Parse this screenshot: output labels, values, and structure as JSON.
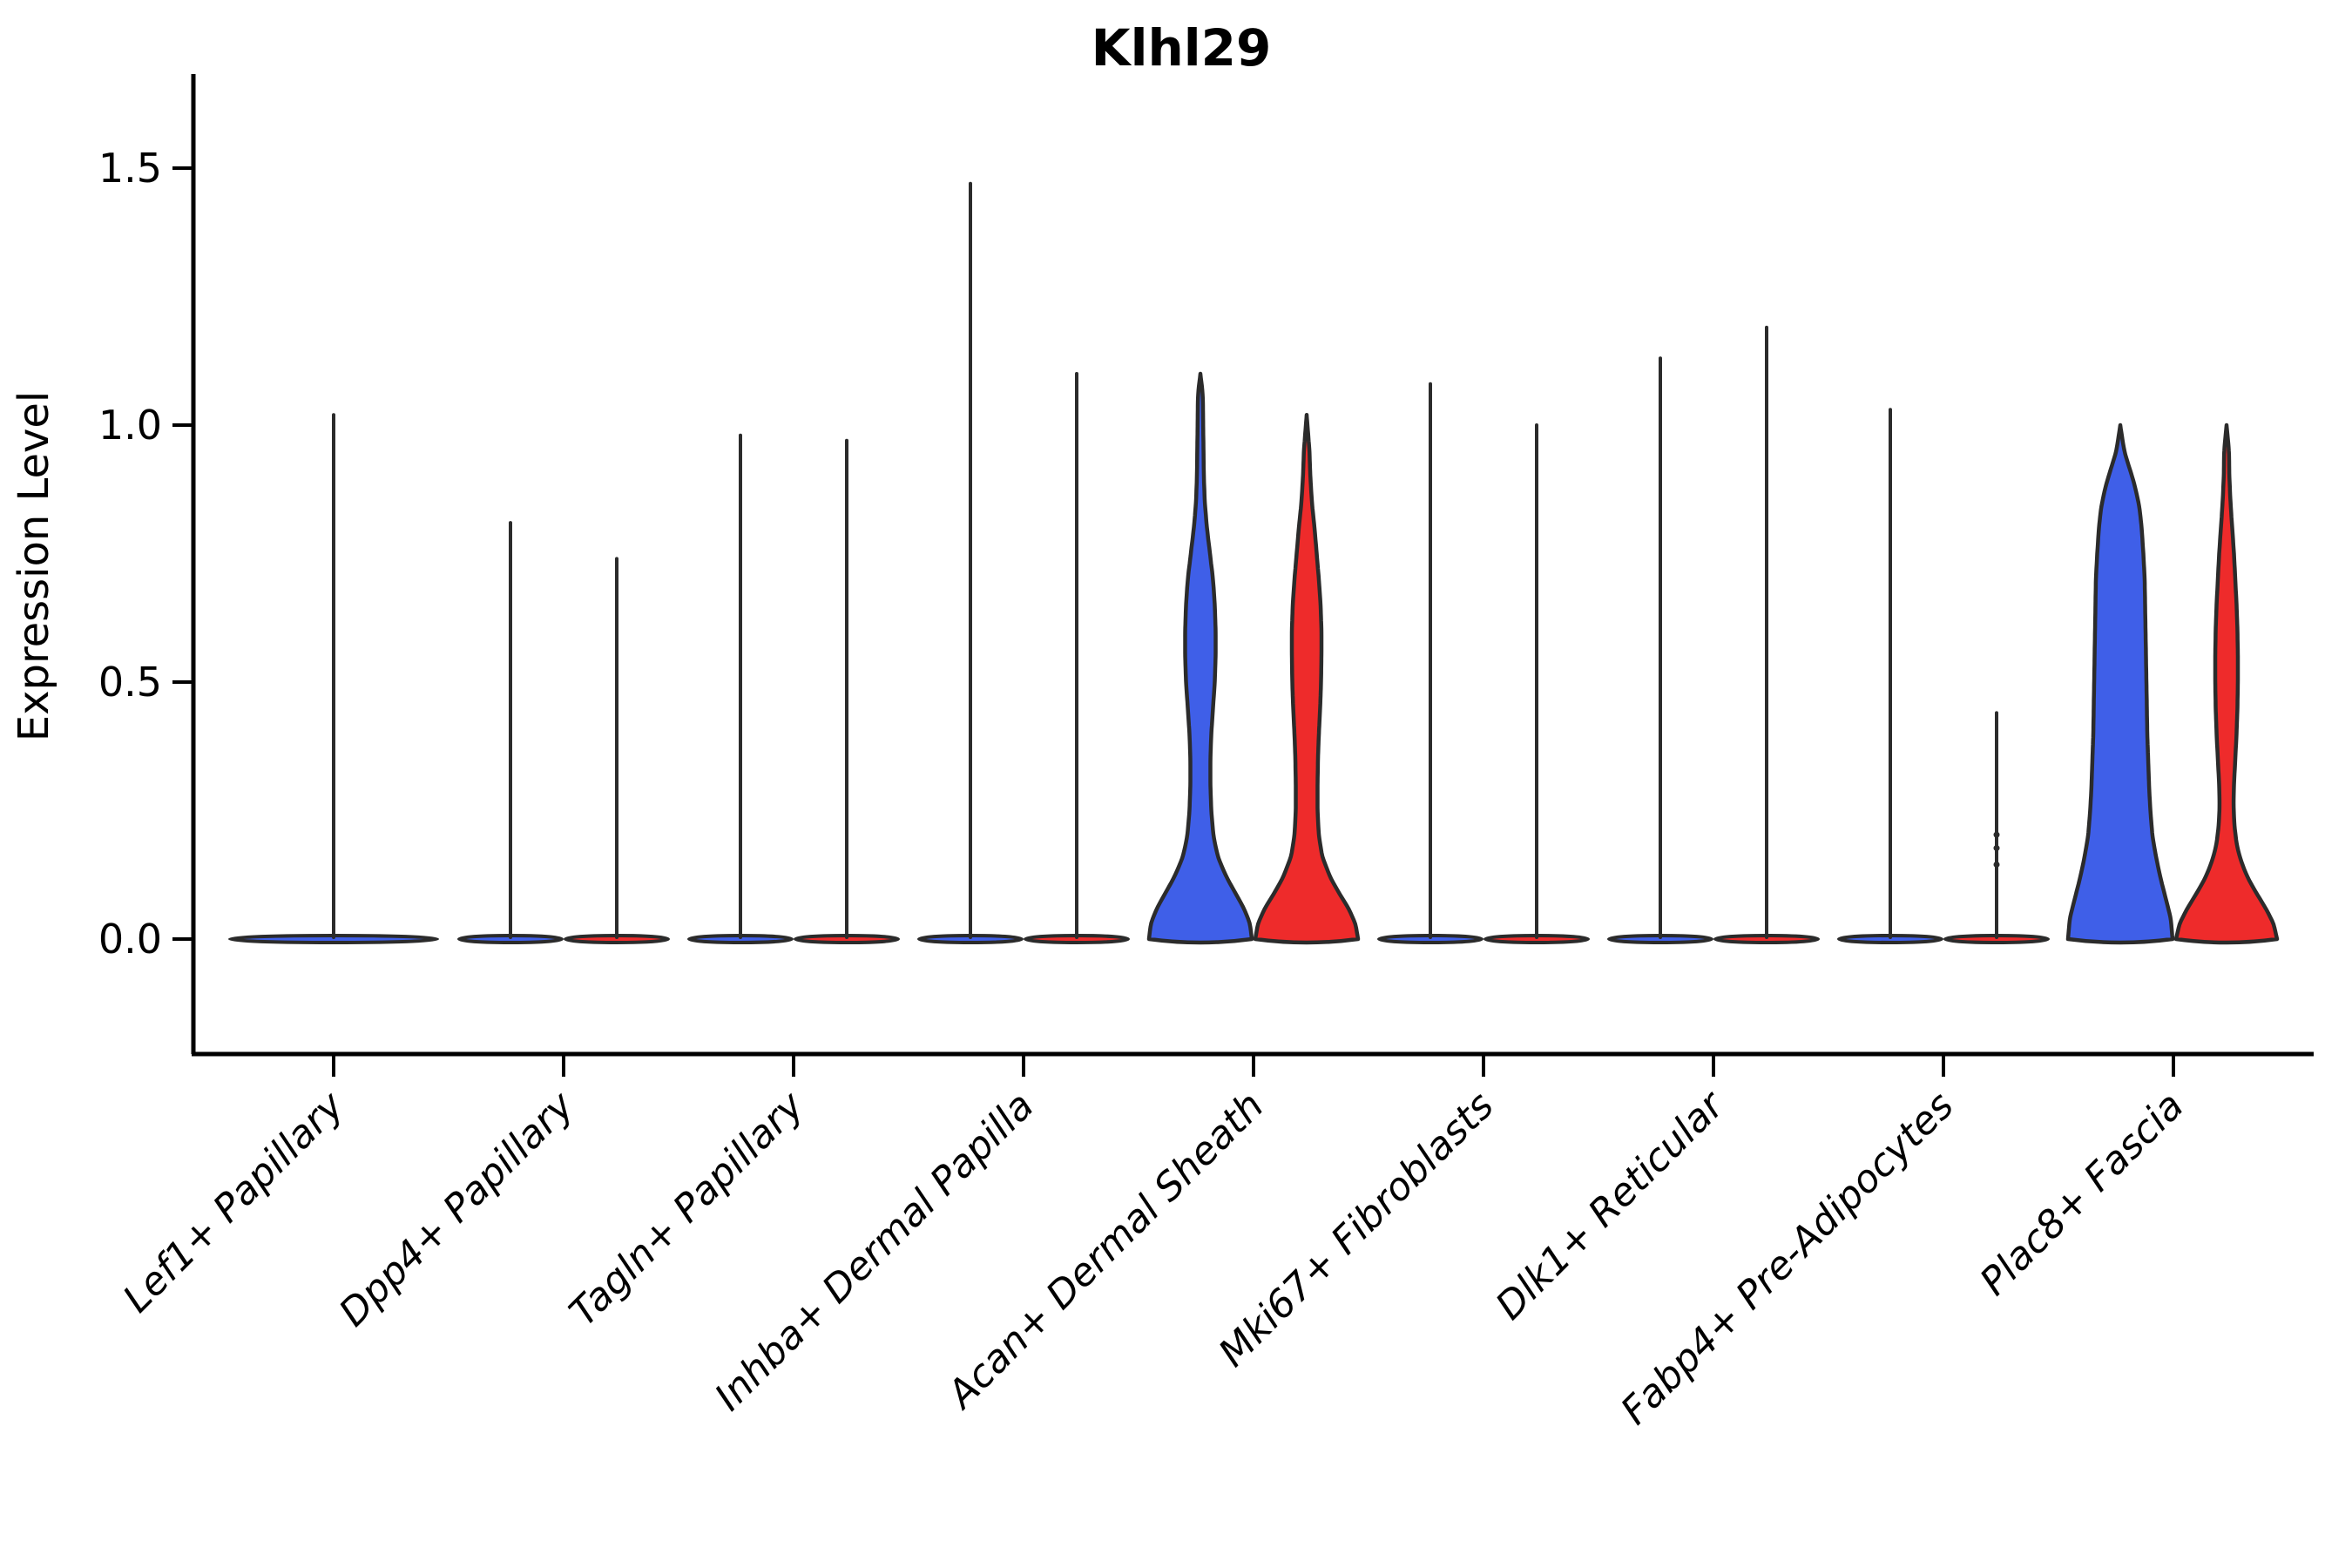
{
  "title": "Klhl29",
  "y_axis": {
    "label": "Expression Level",
    "ticks": [
      {
        "label": "0.0",
        "value": 0.0
      },
      {
        "label": "0.5",
        "value": 0.5
      },
      {
        "label": "1.0",
        "value": 1.0
      },
      {
        "label": "1.5",
        "value": 1.5
      }
    ]
  },
  "chart_data": {
    "type": "violin",
    "title": "Klhl29",
    "xlabel": "",
    "ylabel": "Expression Level",
    "ylim": [
      -0.07,
      1.68
    ],
    "grid": false,
    "legend": "none",
    "colors": {
      "blue": "#3f5fe8",
      "red": "#ee2b2b",
      "outline": "#2b2b2b",
      "text": "#000000"
    },
    "categories": [
      "Lef1+ Papillary",
      "Dpp4+ Papillary",
      "Tagln+ Papillary",
      "Inhba+ Dermal Papilla",
      "Acan+ Dermal Sheath",
      "Mki67+ Fibroblasts",
      "Dlk1+ Reticular",
      "Fabp4+ Pre-Adipocytes",
      "Plac8+ Fascia"
    ],
    "groups": [
      {
        "category": "Lef1+ Papillary",
        "violins": [
          {
            "color": "blue",
            "max": 1.02,
            "shape": "spike",
            "width": "full"
          }
        ]
      },
      {
        "category": "Dpp4+ Papillary",
        "violins": [
          {
            "color": "blue",
            "max": 0.81,
            "shape": "spike",
            "width": "half"
          },
          {
            "color": "red",
            "max": 0.74,
            "shape": "spike",
            "width": "half"
          }
        ]
      },
      {
        "category": "Tagln+ Papillary",
        "violins": [
          {
            "color": "blue",
            "max": 0.98,
            "shape": "spike",
            "width": "half"
          },
          {
            "color": "red",
            "max": 0.97,
            "shape": "spike",
            "width": "half"
          }
        ]
      },
      {
        "category": "Inhba+ Dermal Papilla",
        "violins": [
          {
            "color": "blue",
            "max": 1.47,
            "shape": "spike",
            "width": "half"
          },
          {
            "color": "red",
            "max": 1.1,
            "shape": "spike",
            "width": "half"
          }
        ]
      },
      {
        "category": "Acan+ Dermal Sheath",
        "violins": [
          {
            "color": "blue",
            "max": 1.1,
            "shape": "profile",
            "width": "half",
            "profile": [
              [
                0,
                59
              ],
              [
                0.03,
                57
              ],
              [
                0.06,
                50
              ],
              [
                0.09,
                40
              ],
              [
                0.12,
                30
              ],
              [
                0.16,
                20
              ],
              [
                0.2,
                15
              ],
              [
                0.25,
                12.5
              ],
              [
                0.3,
                11.5
              ],
              [
                0.35,
                11.5
              ],
              [
                0.4,
                12.5
              ],
              [
                0.45,
                14.5
              ],
              [
                0.5,
                16.5
              ],
              [
                0.55,
                17.5
              ],
              [
                0.6,
                17.5
              ],
              [
                0.65,
                16.5
              ],
              [
                0.7,
                14.5
              ],
              [
                0.75,
                11
              ],
              [
                0.8,
                7.5
              ],
              [
                0.85,
                5
              ],
              [
                0.9,
                4
              ],
              [
                1.0,
                3.2
              ],
              [
                1.06,
                2.8
              ],
              [
                1.1,
                0
              ]
            ]
          },
          {
            "color": "red",
            "max": 1.02,
            "shape": "profile",
            "width": "half",
            "profile": [
              [
                0,
                59
              ],
              [
                0.03,
                56
              ],
              [
                0.06,
                48
              ],
              [
                0.09,
                37
              ],
              [
                0.12,
                27
              ],
              [
                0.16,
                18
              ],
              [
                0.2,
                14
              ],
              [
                0.25,
                12.5
              ],
              [
                0.3,
                12.5
              ],
              [
                0.35,
                13
              ],
              [
                0.4,
                14
              ],
              [
                0.45,
                15.5
              ],
              [
                0.5,
                16.5
              ],
              [
                0.55,
                17
              ],
              [
                0.6,
                17
              ],
              [
                0.65,
                16
              ],
              [
                0.7,
                14
              ],
              [
                0.75,
                11.5
              ],
              [
                0.8,
                9
              ],
              [
                0.85,
                6
              ],
              [
                0.9,
                4.2
              ],
              [
                0.95,
                3.2
              ],
              [
                1.02,
                0
              ]
            ]
          }
        ]
      },
      {
        "category": "Mki67+ Fibroblasts",
        "violins": [
          {
            "color": "blue",
            "max": 1.08,
            "shape": "spike",
            "width": "half"
          },
          {
            "color": "red",
            "max": 1.0,
            "shape": "spike",
            "width": "half"
          }
        ]
      },
      {
        "category": "Dlk1+ Reticular",
        "violins": [
          {
            "color": "blue",
            "max": 1.13,
            "shape": "spike",
            "width": "half"
          },
          {
            "color": "red",
            "max": 1.19,
            "shape": "spike",
            "width": "half"
          }
        ]
      },
      {
        "category": "Fabp4+ Pre-Adipocytes",
        "violins": [
          {
            "color": "blue",
            "max": 1.03,
            "shape": "spike",
            "width": "half"
          },
          {
            "color": "red",
            "max": 0.44,
            "shape": "spike",
            "width": "half",
            "bumps": [
              0.145,
              0.177,
              0.203
            ]
          }
        ]
      },
      {
        "category": "Plac8+ Fascia",
        "violins": [
          {
            "color": "blue",
            "max": 1.0,
            "shape": "profile",
            "width": "half",
            "profile": [
              [
                0,
                60
              ],
              [
                0.04,
                58
              ],
              [
                0.08,
                52
              ],
              [
                0.12,
                46
              ],
              [
                0.16,
                41
              ],
              [
                0.2,
                37
              ],
              [
                0.25,
                34.5
              ],
              [
                0.3,
                33
              ],
              [
                0.35,
                32
              ],
              [
                0.4,
                31
              ],
              [
                0.45,
                30.5
              ],
              [
                0.5,
                30
              ],
              [
                0.55,
                29.5
              ],
              [
                0.6,
                29
              ],
              [
                0.65,
                28.5
              ],
              [
                0.7,
                28
              ],
              [
                0.75,
                26.5
              ],
              [
                0.8,
                24.5
              ],
              [
                0.84,
                22
              ],
              [
                0.88,
                17
              ],
              [
                0.92,
                10
              ],
              [
                0.94,
                6
              ],
              [
                0.96,
                3.5
              ],
              [
                1.0,
                0
              ]
            ]
          },
          {
            "color": "red",
            "max": 1.0,
            "shape": "profile",
            "width": "half",
            "profile": [
              [
                0,
                58
              ],
              [
                0.03,
                54
              ],
              [
                0.06,
                45
              ],
              [
                0.09,
                34
              ],
              [
                0.12,
                24
              ],
              [
                0.15,
                17
              ],
              [
                0.18,
                12
              ],
              [
                0.22,
                9
              ],
              [
                0.26,
                8
              ],
              [
                0.3,
                8.5
              ],
              [
                0.35,
                10
              ],
              [
                0.4,
                11.5
              ],
              [
                0.45,
                12.5
              ],
              [
                0.5,
                13
              ],
              [
                0.55,
                13
              ],
              [
                0.6,
                12.5
              ],
              [
                0.65,
                11.5
              ],
              [
                0.7,
                10
              ],
              [
                0.75,
                8.5
              ],
              [
                0.8,
                6.5
              ],
              [
                0.85,
                4.5
              ],
              [
                0.9,
                3.2
              ],
              [
                0.95,
                2.8
              ],
              [
                1.0,
                0
              ]
            ]
          }
        ]
      }
    ]
  }
}
